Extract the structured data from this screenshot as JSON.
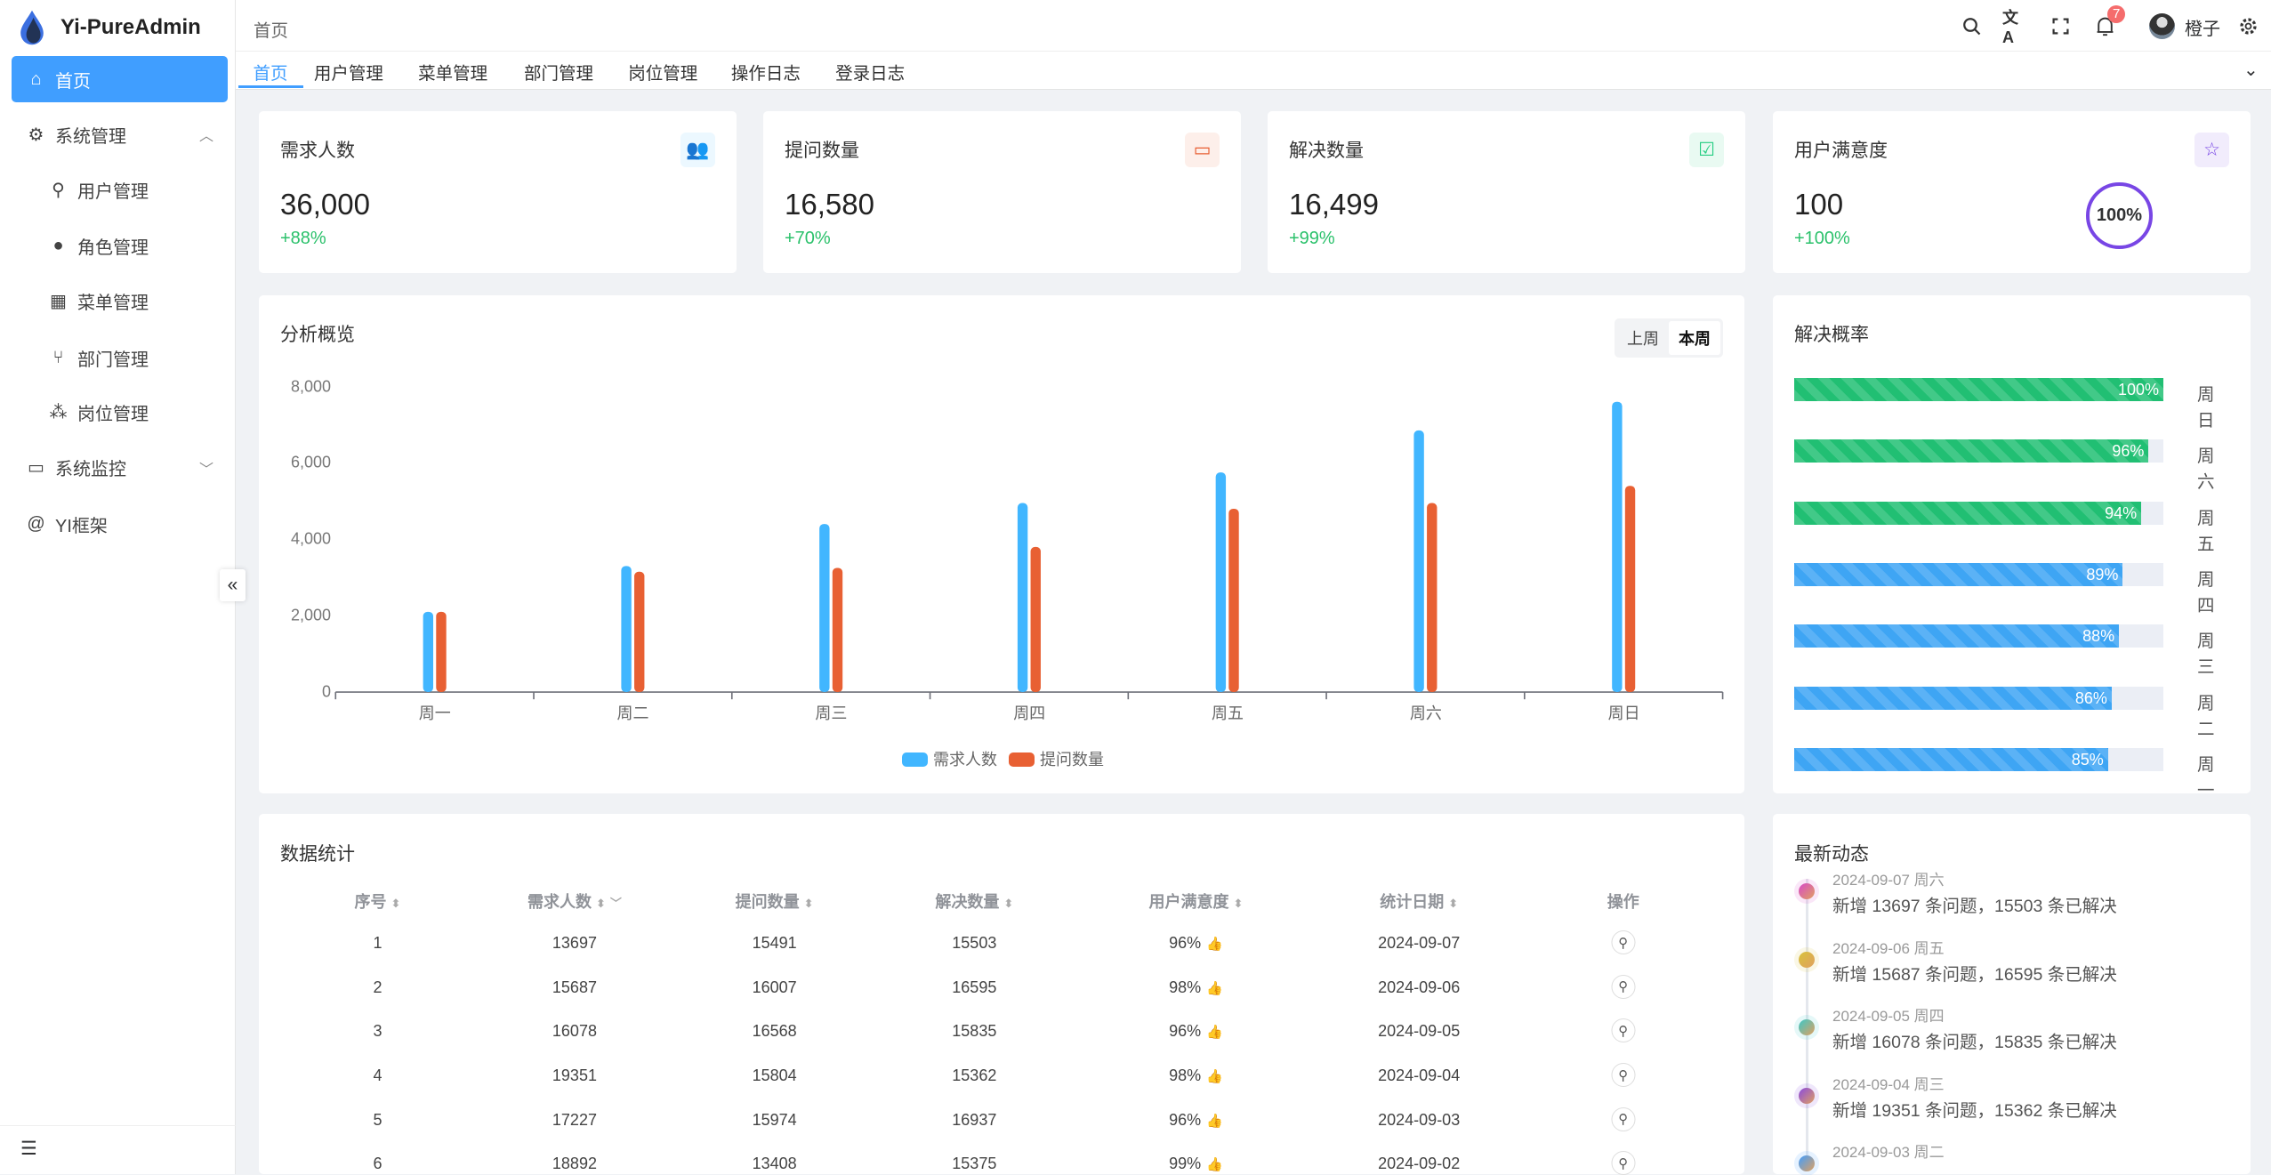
{
  "app": {
    "name": "Yi-PureAdmin"
  },
  "sidebar": {
    "items": [
      {
        "label": "首页",
        "icon": "home-icon",
        "active": true
      },
      {
        "label": "系统管理",
        "icon": "gear-icon",
        "expanded": true
      },
      {
        "label": "用户管理",
        "icon": "user-lock-icon",
        "child": true
      },
      {
        "label": "角色管理",
        "icon": "role-icon",
        "child": true
      },
      {
        "label": "菜单管理",
        "icon": "grid-icon",
        "child": true
      },
      {
        "label": "部门管理",
        "icon": "branch-icon",
        "child": true
      },
      {
        "label": "岗位管理",
        "icon": "org-icon",
        "child": true
      },
      {
        "label": "系统监控",
        "icon": "monitor-icon",
        "expanded": false
      },
      {
        "label": "YI框架",
        "icon": "at-icon"
      }
    ]
  },
  "header": {
    "breadcrumb": "首页",
    "notification_count": "7",
    "username": "橙子"
  },
  "tabs": [
    {
      "label": "首页",
      "active": true
    },
    {
      "label": "用户管理"
    },
    {
      "label": "菜单管理"
    },
    {
      "label": "部门管理"
    },
    {
      "label": "岗位管理"
    },
    {
      "label": "操作日志"
    },
    {
      "label": "登录日志"
    }
  ],
  "stats": [
    {
      "title": "需求人数",
      "value": "36,000",
      "change": "+88%",
      "color": "#41b6ff",
      "icon": "users-icon"
    },
    {
      "title": "提问数量",
      "value": "16,580",
      "change": "+70%",
      "color": "#e85f33",
      "icon": "chat-icon"
    },
    {
      "title": "解决数量",
      "value": "16,499",
      "change": "+99%",
      "color": "#26ce83",
      "icon": "check-message-icon"
    },
    {
      "title": "用户满意度",
      "value": "100",
      "change": "+100%",
      "color": "#7846e5",
      "icon": "star-icon",
      "ring": "100%"
    }
  ],
  "overview": {
    "title": "分析概览",
    "toggle": [
      "上周",
      "本周"
    ],
    "selected": "本周"
  },
  "chart_data": {
    "type": "bar",
    "categories": [
      "周一",
      "周二",
      "周三",
      "周四",
      "周五",
      "周六",
      "周日"
    ],
    "series": [
      {
        "name": "需求人数",
        "color": "#41b6ff",
        "values": [
          2100,
          3300,
          4400,
          4950,
          5750,
          6850,
          7600
        ]
      },
      {
        "name": "提问数量",
        "color": "#e86033",
        "values": [
          2100,
          3150,
          3250,
          3800,
          4800,
          4950,
          5400
        ]
      }
    ],
    "yticks": [
      "0",
      "2,000",
      "4,000",
      "6,000",
      "8,000"
    ],
    "ylim": [
      0,
      8000
    ],
    "legend": "bottom",
    "grid": false
  },
  "resolve_rate": {
    "title": "解决概率",
    "items": [
      {
        "day": "周日",
        "percent": 100,
        "label": "100%"
      },
      {
        "day": "周六",
        "percent": 96,
        "label": "96%"
      },
      {
        "day": "周五",
        "percent": 94,
        "label": "94%"
      },
      {
        "day": "周四",
        "percent": 89,
        "label": "89%"
      },
      {
        "day": "周三",
        "percent": 88,
        "label": "88%"
      },
      {
        "day": "周二",
        "percent": 86,
        "label": "86%"
      },
      {
        "day": "周一",
        "percent": 85,
        "label": "85%"
      }
    ]
  },
  "table": {
    "title": "数据统计",
    "columns": [
      "序号",
      "需求人数",
      "提问数量",
      "解决数量",
      "用户满意度",
      "统计日期",
      "操作"
    ],
    "rows": [
      [
        "1",
        "13697",
        "15491",
        "15503",
        "96%",
        "2024-09-07"
      ],
      [
        "2",
        "15687",
        "16007",
        "16595",
        "98%",
        "2024-09-06"
      ],
      [
        "3",
        "16078",
        "16568",
        "15835",
        "96%",
        "2024-09-05"
      ],
      [
        "4",
        "19351",
        "15804",
        "15362",
        "98%",
        "2024-09-04"
      ],
      [
        "5",
        "17227",
        "15974",
        "16937",
        "96%",
        "2024-09-03"
      ],
      [
        "6",
        "18892",
        "13408",
        "15375",
        "99%",
        "2024-09-02"
      ]
    ]
  },
  "activity": {
    "title": "最新动态",
    "items": [
      {
        "date": "2024-09-07 周六",
        "text": "新增 13697 条问题，15503 条已解决",
        "color": "#d84ac8"
      },
      {
        "date": "2024-09-06 周五",
        "text": "新增 15687 条问题，16595 条已解决",
        "color": "#d8c23c"
      },
      {
        "date": "2024-09-05 周四",
        "text": "新增 16078 条问题，15835 条已解决",
        "color": "#3cc8c8"
      },
      {
        "date": "2024-09-04 周三",
        "text": "新增 19351 条问题，15362 条已解决",
        "color": "#8a4ae0"
      },
      {
        "date": "2024-09-03 周二",
        "text": "",
        "color": "#409eff"
      }
    ]
  }
}
